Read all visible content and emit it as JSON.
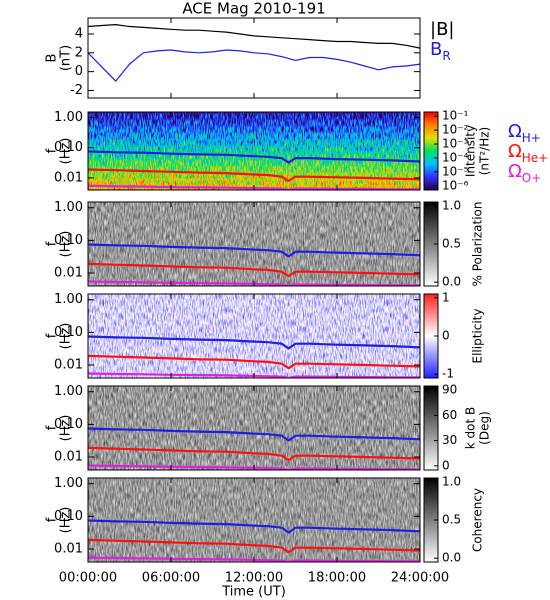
{
  "chart_data": [
    {
      "type": "line",
      "title": "ACE Mag 2010-191",
      "ylabel": [
        "B",
        "(nT)"
      ],
      "xlim": [
        0,
        24
      ],
      "ylim": [
        -2.8,
        5.7
      ],
      "yticks": [
        -2,
        0,
        2,
        4
      ],
      "x": [
        0,
        1,
        2,
        3,
        4,
        5,
        6,
        7,
        8,
        9,
        10,
        11,
        12,
        13,
        14,
        15,
        16,
        17,
        18,
        19,
        20,
        21,
        22,
        23,
        24
      ],
      "series": [
        {
          "name": "|B|",
          "color": "#000000",
          "values": [
            4.8,
            4.9,
            5.0,
            4.8,
            4.7,
            4.6,
            4.5,
            4.4,
            4.4,
            4.3,
            4.2,
            4.0,
            3.8,
            3.7,
            3.6,
            3.5,
            3.4,
            3.3,
            3.2,
            3.2,
            3.1,
            3.0,
            3.0,
            2.8,
            2.5
          ]
        },
        {
          "name": "B",
          "sub": "R",
          "color": "#1f1fe0",
          "values": [
            2.0,
            0.5,
            -1.0,
            0.8,
            2.0,
            2.2,
            2.3,
            2.1,
            2.0,
            2.1,
            2.3,
            2.2,
            2.0,
            1.9,
            1.6,
            1.2,
            1.5,
            1.5,
            1.3,
            1.0,
            0.6,
            0.2,
            0.5,
            0.6,
            0.8
          ]
        }
      ]
    },
    {
      "type": "spectrogram",
      "ylabel": [
        "f",
        "(Hz)"
      ],
      "log_y": true,
      "xlim": [
        0,
        24
      ],
      "ylim": [
        0.004,
        1.5
      ],
      "yticks": [
        0.01,
        {
          "value": 0.1,
          "label": "0.10"
        },
        {
          "value": 1,
          "label": "1.00"
        }
      ],
      "colormap": [
        "#2a0050",
        "#3030ff",
        "#00c0ff",
        "#00e060",
        "#e0e000",
        "#ff8000",
        "#ff0000"
      ],
      "clabel": [
        "Intensity",
        "(nT²/Hz)"
      ],
      "clog": true,
      "clim": [
        5e-07,
        0.2
      ],
      "cticks": [
        {
          "value": 0.1,
          "label": "10⁻¹"
        },
        {
          "value": 0.01,
          "label": "10⁻²"
        },
        {
          "value": 0.001,
          "label": "10⁻³"
        },
        {
          "value": 0.0001,
          "label": "10⁻⁴"
        },
        {
          "value": 1e-05,
          "label": "10⁻⁵"
        },
        {
          "value": 1e-06,
          "label": "10⁻⁶"
        }
      ],
      "x": [
        0,
        2,
        4,
        6,
        8,
        10,
        12,
        13,
        14,
        14.5,
        15,
        16,
        18,
        20,
        22,
        24
      ],
      "series": [
        {
          "name": "Ω",
          "sub": "H+",
          "color": "#1f1fe0",
          "values": [
            0.075,
            0.07,
            0.068,
            0.063,
            0.06,
            0.058,
            0.052,
            0.05,
            0.045,
            0.032,
            0.045,
            0.045,
            0.042,
            0.04,
            0.038,
            0.035
          ]
        },
        {
          "name": "Ω",
          "sub": "He+",
          "color": "#ff1010",
          "values": [
            0.019,
            0.018,
            0.017,
            0.016,
            0.015,
            0.0145,
            0.013,
            0.0125,
            0.011,
            0.008,
            0.011,
            0.011,
            0.0105,
            0.01,
            0.0095,
            0.009
          ]
        },
        {
          "name": "Ω",
          "sub": "O+",
          "color": "#e020e0",
          "values": [
            0.0055,
            0.0053,
            0.0052,
            0.005,
            0.0049,
            0.0048,
            0.0046,
            0.0045,
            0.0044,
            0.004,
            0.0044,
            0.0044,
            0.0043,
            0.0043,
            0.0042,
            0.0042
          ]
        }
      ]
    },
    {
      "type": "spectrogram",
      "ylabel": [
        "f",
        "(Hz)"
      ],
      "log_y": true,
      "xlim": [
        0,
        24
      ],
      "ylim": [
        0.004,
        1.5
      ],
      "yticks": [
        0.01,
        {
          "value": 0.1,
          "label": "0.10"
        },
        {
          "value": 1,
          "label": "1.00"
        }
      ],
      "colormap": [
        "#ffffff",
        "#000000"
      ],
      "clabel": [
        "% Polarization"
      ],
      "clim": [
        -0.05,
        1.05
      ],
      "cticks": [
        {
          "value": 0,
          "label": "0.0"
        },
        0.5,
        {
          "value": 1,
          "label": "1.0"
        }
      ],
      "x": [
        0,
        2,
        4,
        6,
        8,
        10,
        12,
        13,
        14,
        14.5,
        15,
        16,
        18,
        20,
        22,
        24
      ],
      "series": [
        {
          "color": "#1f1fe0",
          "values": [
            0.075,
            0.07,
            0.068,
            0.063,
            0.06,
            0.058,
            0.052,
            0.05,
            0.045,
            0.032,
            0.045,
            0.045,
            0.042,
            0.04,
            0.038,
            0.035
          ]
        },
        {
          "color": "#ff1010",
          "values": [
            0.019,
            0.018,
            0.017,
            0.016,
            0.015,
            0.0145,
            0.013,
            0.0125,
            0.011,
            0.008,
            0.011,
            0.011,
            0.0105,
            0.01,
            0.0095,
            0.009
          ]
        },
        {
          "color": "#e020e0",
          "values": [
            0.0055,
            0.0053,
            0.0052,
            0.005,
            0.0049,
            0.0048,
            0.0046,
            0.0045,
            0.0044,
            0.004,
            0.0044,
            0.0044,
            0.0043,
            0.0043,
            0.0042,
            0.0042
          ]
        }
      ]
    },
    {
      "type": "spectrogram",
      "ylabel": [
        "f",
        "(Hz)"
      ],
      "log_y": true,
      "xlim": [
        0,
        24
      ],
      "ylim": [
        0.004,
        1.5
      ],
      "yticks": [
        0.01,
        {
          "value": 0.1,
          "label": "0.10"
        },
        {
          "value": 1,
          "label": "1.00"
        }
      ],
      "colormap": [
        "#2020ff",
        "#ffffff",
        "#ff2020"
      ],
      "clabel": [
        "Ellipticity"
      ],
      "clim": [
        -1.1,
        1.1
      ],
      "cticks": [
        -1,
        0,
        1
      ],
      "x": [
        0,
        2,
        4,
        6,
        8,
        10,
        12,
        13,
        14,
        14.5,
        15,
        16,
        18,
        20,
        22,
        24
      ],
      "series": [
        {
          "color": "#1f1fe0",
          "values": [
            0.075,
            0.07,
            0.068,
            0.063,
            0.06,
            0.058,
            0.052,
            0.05,
            0.045,
            0.032,
            0.045,
            0.045,
            0.042,
            0.04,
            0.038,
            0.035
          ]
        },
        {
          "color": "#ff1010",
          "values": [
            0.019,
            0.018,
            0.017,
            0.016,
            0.015,
            0.0145,
            0.013,
            0.0125,
            0.011,
            0.008,
            0.011,
            0.011,
            0.0105,
            0.01,
            0.0095,
            0.009
          ]
        },
        {
          "color": "#e020e0",
          "values": [
            0.0055,
            0.0053,
            0.0052,
            0.005,
            0.0049,
            0.0048,
            0.0046,
            0.0045,
            0.0044,
            0.004,
            0.0044,
            0.0044,
            0.0043,
            0.0043,
            0.0042,
            0.0042
          ]
        }
      ]
    },
    {
      "type": "spectrogram",
      "ylabel": [
        "f",
        "(Hz)"
      ],
      "log_y": true,
      "xlim": [
        0,
        24
      ],
      "ylim": [
        0.004,
        1.5
      ],
      "yticks": [
        0.01,
        {
          "value": 0.1,
          "label": "0.10"
        },
        {
          "value": 1,
          "label": "1.00"
        }
      ],
      "colormap": [
        "#ffffff",
        "#000000"
      ],
      "clabel": [
        "k dot B",
        "(Deg)"
      ],
      "clim": [
        -5,
        95
      ],
      "cticks": [
        0,
        30,
        60,
        90
      ],
      "x": [
        0,
        2,
        4,
        6,
        8,
        10,
        12,
        13,
        14,
        14.5,
        15,
        16,
        18,
        20,
        22,
        24
      ],
      "series": [
        {
          "color": "#1f1fe0",
          "values": [
            0.075,
            0.07,
            0.068,
            0.063,
            0.06,
            0.058,
            0.052,
            0.05,
            0.045,
            0.032,
            0.045,
            0.045,
            0.042,
            0.04,
            0.038,
            0.035
          ]
        },
        {
          "color": "#ff1010",
          "values": [
            0.019,
            0.018,
            0.017,
            0.016,
            0.015,
            0.0145,
            0.013,
            0.0125,
            0.011,
            0.008,
            0.011,
            0.011,
            0.0105,
            0.01,
            0.0095,
            0.009
          ]
        },
        {
          "color": "#e020e0",
          "values": [
            0.0055,
            0.0053,
            0.0052,
            0.005,
            0.0049,
            0.0048,
            0.0046,
            0.0045,
            0.0044,
            0.004,
            0.0044,
            0.0044,
            0.0043,
            0.0043,
            0.0042,
            0.0042
          ]
        }
      ]
    },
    {
      "type": "spectrogram",
      "ylabel": [
        "f",
        "(Hz)"
      ],
      "log_y": true,
      "xlim": [
        0,
        24
      ],
      "ylim": [
        0.004,
        1.5
      ],
      "yticks": [
        0.01,
        {
          "value": 0.1,
          "label": "0.10"
        },
        {
          "value": 1,
          "label": "1.00"
        }
      ],
      "colormap": [
        "#ffffff",
        "#000000"
      ],
      "clabel": [
        "Coherency"
      ],
      "clim": [
        -0.05,
        1.05
      ],
      "cticks": [
        {
          "value": 0,
          "label": "0.0"
        },
        0.5,
        {
          "value": 1,
          "label": "1.0"
        }
      ],
      "xlabel": "Time (UT)",
      "xticks": [
        {
          "value": 0,
          "label": "00:00:00"
        },
        {
          "value": 6,
          "label": "06:00:00"
        },
        {
          "value": 12,
          "label": "12:00:00"
        },
        {
          "value": 18,
          "label": "18:00:00"
        },
        {
          "value": 24,
          "label": "24:00:00"
        }
      ],
      "x": [
        0,
        2,
        4,
        6,
        8,
        10,
        12,
        13,
        14,
        14.5,
        15,
        16,
        18,
        20,
        22,
        24
      ],
      "series": [
        {
          "color": "#1f1fe0",
          "values": [
            0.075,
            0.07,
            0.068,
            0.063,
            0.06,
            0.058,
            0.052,
            0.05,
            0.045,
            0.032,
            0.045,
            0.045,
            0.042,
            0.04,
            0.038,
            0.035
          ]
        },
        {
          "color": "#ff1010",
          "values": [
            0.019,
            0.018,
            0.017,
            0.016,
            0.015,
            0.0145,
            0.013,
            0.0125,
            0.011,
            0.008,
            0.011,
            0.011,
            0.0105,
            0.01,
            0.0095,
            0.009
          ]
        },
        {
          "color": "#e020e0",
          "values": [
            0.0055,
            0.0053,
            0.0052,
            0.005,
            0.0049,
            0.0048,
            0.0046,
            0.0045,
            0.0044,
            0.004,
            0.0044,
            0.0044,
            0.0043,
            0.0043,
            0.0042,
            0.0042
          ]
        }
      ]
    }
  ]
}
